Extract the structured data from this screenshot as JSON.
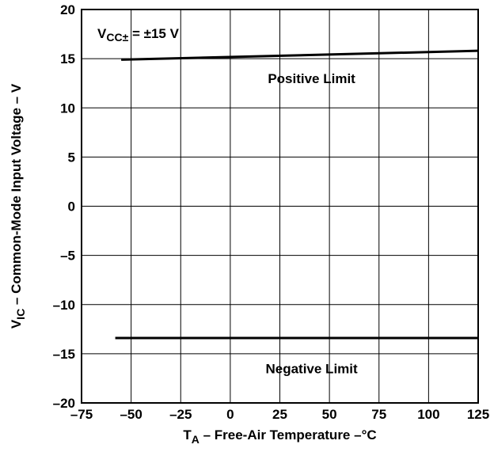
{
  "chart_data": {
    "type": "line",
    "xlabel": {
      "base": "T",
      "sub": "A",
      "rest": " – Free-Air Temperature –°C"
    },
    "ylabel": {
      "base": "V",
      "sub": "IC",
      "rest": " – Common-Mode Input Voltage – V"
    },
    "xlim": [
      -75,
      125
    ],
    "ylim": [
      -20,
      20
    ],
    "x_ticks": [
      -75,
      -50,
      -25,
      0,
      25,
      50,
      75,
      100,
      125
    ],
    "y_ticks": [
      -20,
      -15,
      -10,
      -5,
      0,
      5,
      10,
      15,
      20
    ],
    "x_tick_labels": [
      "–75",
      "–50",
      "–25",
      "0",
      "25",
      "50",
      "75",
      "100",
      "125"
    ],
    "y_tick_labels": [
      "–20",
      "–15",
      "–10",
      "–5",
      "0",
      "5",
      "10",
      "15",
      "20"
    ],
    "grid": true,
    "condition": {
      "base": "V",
      "sub": "CC±",
      "rest": " = ±15 V"
    },
    "series": [
      {
        "name": "Positive Limit",
        "x": [
          -55,
          125
        ],
        "y": [
          14.9,
          15.8
        ]
      },
      {
        "name": "Negative Limit",
        "x": [
          -58,
          125
        ],
        "y": [
          -13.4,
          -13.4
        ]
      }
    ],
    "annotations": [
      {
        "text": "Positive Limit",
        "x": 41,
        "y": 13
      },
      {
        "text": "Negative Limit",
        "x": 41,
        "y": -16.5
      }
    ]
  }
}
